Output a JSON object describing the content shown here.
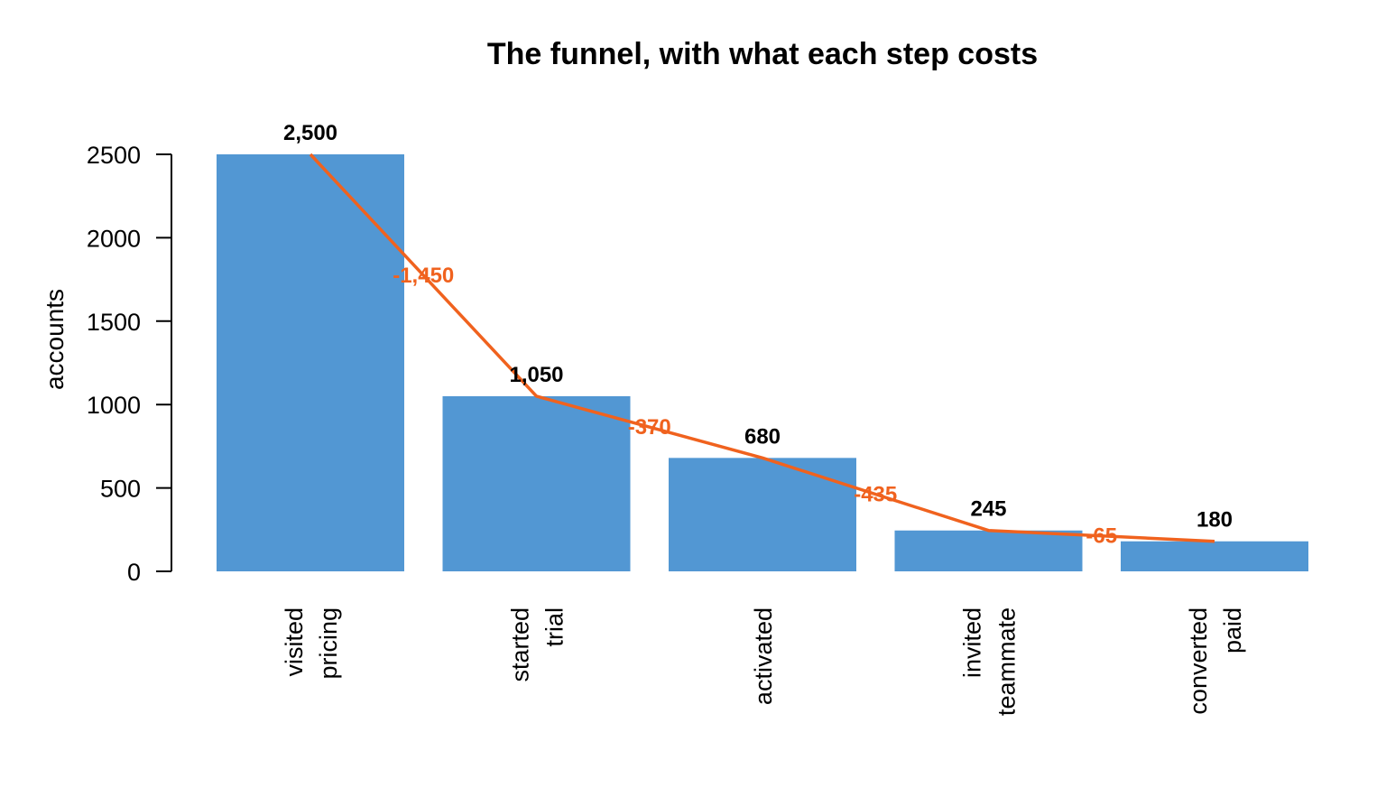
{
  "chart_data": {
    "type": "bar",
    "title": "The funnel, with what each step costs",
    "xlabel": "",
    "ylabel": "accounts",
    "ylim": [
      0,
      2500
    ],
    "yticks": [
      0,
      500,
      1000,
      1500,
      2000,
      2500
    ],
    "grid": false,
    "legend": "none",
    "categories": [
      [
        "visited",
        "pricing"
      ],
      [
        "started",
        "trial"
      ],
      [
        "activated"
      ],
      [
        "invited",
        "teammate"
      ],
      [
        "converted",
        "paid"
      ]
    ],
    "values": [
      2500,
      1050,
      680,
      245,
      180
    ],
    "value_labels": [
      "2,500",
      "1,050",
      "680",
      "245",
      "180"
    ],
    "step_drops": [
      -1450,
      -370,
      -435,
      -65
    ],
    "step_drop_labels": [
      "-1,450",
      "-370",
      "-435",
      "-65"
    ],
    "colors": {
      "bar": "#5297d3",
      "line": "#f0621e",
      "drop_text": "#f0621e",
      "axis": "#000000"
    }
  }
}
